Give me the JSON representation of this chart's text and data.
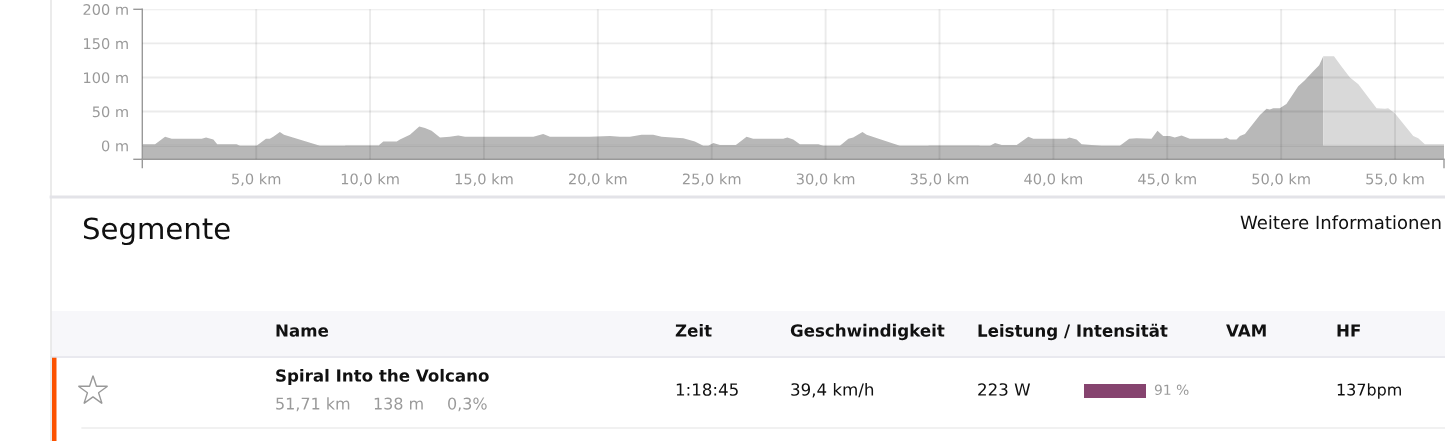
{
  "chart_data": [
    {
      "type": "area",
      "xlim": [
        0,
        57.15
      ],
      "ylim": [
        -20,
        200
      ],
      "xticks": [
        {
          "value": 0,
          "label": null
        },
        {
          "value": 5,
          "label": "5,0 km"
        },
        {
          "value": 10,
          "label": "10,0 km"
        },
        {
          "value": 15,
          "label": "15,0 km"
        },
        {
          "value": 20,
          "label": "20,0 km"
        },
        {
          "value": 25,
          "label": "25,0 km"
        },
        {
          "value": 30,
          "label": "30,0 km"
        },
        {
          "value": 35,
          "label": "35,0 km"
        },
        {
          "value": 40,
          "label": "40,0 km"
        },
        {
          "value": 45,
          "label": "45,0 km"
        },
        {
          "value": 50,
          "label": "50,0 km"
        },
        {
          "value": 55,
          "label": "55,0 km"
        },
        {
          "value": 57.15,
          "label": null
        }
      ],
      "yticks": [
        {
          "value": -20,
          "label": null
        },
        {
          "value": 0,
          "label": "0 m"
        },
        {
          "value": 50,
          "label": "50 m"
        },
        {
          "value": 100,
          "label": "100 m"
        },
        {
          "value": 150,
          "label": "150 m"
        },
        {
          "value": 200,
          "label": "200 m"
        }
      ],
      "grid": true,
      "bands": [
        {
          "axis": "y",
          "from": -20,
          "to": 0,
          "color": "#b8b8b8"
        }
      ],
      "series": [
        {
          "color": "#b8b8b8",
          "x": [
            0,
            0.56,
            1.0,
            1.29,
            2.61,
            2.8,
            3.12,
            3.29,
            4.14,
            4.29,
            5.02,
            5.43,
            5.6,
            5.75,
            6.04,
            6.22,
            7.8,
            8.9,
            9.19,
            10.29,
            10.4,
            10.58,
            11.17,
            11.31,
            11.75,
            12.16,
            12.41,
            12.7,
            13.07,
            13.5,
            13.87,
            14.17,
            17.17,
            17.6,
            17.9,
            19.65,
            20.53,
            20.97,
            21.41,
            21.92,
            22.43,
            22.8,
            23.75,
            24.26,
            24.63,
            24.85,
            25.07,
            25.36,
            26.06,
            26.53,
            26.82,
            28.14,
            28.32,
            28.58,
            28.87,
            29.68,
            29.9,
            30.63,
            31.0,
            31.21,
            31.62,
            31.8,
            33.26,
            34.51,
            34.75,
            36.55,
            36.77,
            37.22,
            37.44,
            37.73,
            38.39,
            38.9,
            39.12,
            40.58,
            40.7,
            41.02,
            41.24,
            42.12,
            42.92,
            43.33,
            43.65,
            44.31,
            44.57,
            44.82,
            45.11,
            45.33,
            45.63,
            45.99,
            47.45,
            47.6,
            47.75,
            48.04,
            48.19,
            48.41,
            49.07,
            49.36,
            49.5,
            49.65,
            49.94,
            50.23,
            50.75,
            51.04,
            51.41,
            51.67,
            51.85
          ],
          "values": [
            2,
            2,
            13,
            10,
            10,
            12,
            9,
            2,
            2,
            0,
            0,
            10,
            10,
            13,
            20,
            16,
            0,
            0,
            -6,
            -6,
            1,
            6,
            6,
            9,
            16,
            28,
            26,
            22,
            12,
            13,
            15,
            13,
            13,
            17,
            13,
            13,
            14,
            13,
            13,
            16,
            16,
            13,
            11,
            6,
            0,
            0,
            4,
            1,
            1,
            13,
            10,
            10,
            12,
            9,
            2,
            2,
            0,
            0,
            10,
            12,
            20,
            16,
            0,
            0,
            -6,
            -6,
            0,
            0,
            4,
            1,
            1,
            13,
            10,
            10,
            12,
            9,
            2,
            0,
            0,
            10,
            11,
            10,
            22,
            14,
            14,
            12,
            15,
            10,
            10,
            12,
            9,
            9,
            14,
            17,
            45,
            54,
            53,
            55,
            55,
            61,
            87,
            96,
            109,
            118,
            131
          ]
        },
        {
          "color": "#d9d9d9",
          "x": [
            51.85,
            52.32,
            52.65,
            53.02,
            53.39,
            54.19,
            54.56,
            54.7,
            55.0,
            55.8,
            56.02,
            56.31,
            57.15
          ],
          "values": [
            131,
            131,
            116,
            100,
            90,
            55,
            54,
            55,
            47,
            14,
            11,
            2,
            2
          ]
        }
      ]
    },
    {
      "type": "other",
      "title": "Segmente",
      "annotations": [
        "Weitere Informationen",
        "Name",
        "Zeit",
        "Geschwindigkeit",
        "Leistung / Intensität",
        "VAM",
        "HF",
        "Spiral Into the Volcano",
        "51,71 km",
        "138 m",
        "0,3%",
        "1:18:45",
        "39,4 km/h",
        "223 W",
        "91 %",
        "137bpm"
      ]
    }
  ]
}
